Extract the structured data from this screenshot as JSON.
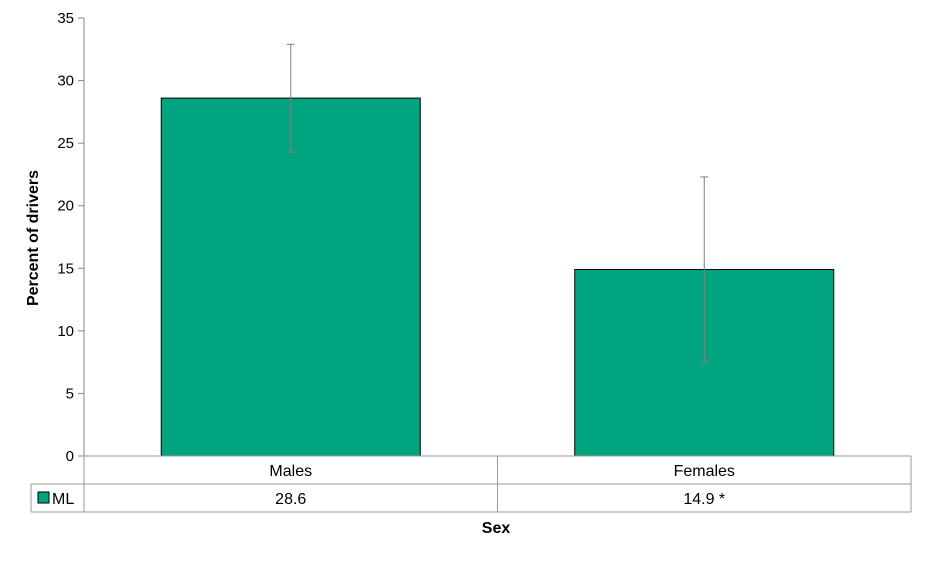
{
  "chart_data": {
    "type": "bar",
    "categories": [
      "Males",
      "Females"
    ],
    "series": [
      {
        "name": "ML",
        "values": [
          28.6,
          14.9
        ],
        "value_labels": [
          "28.6",
          "14.9 *"
        ],
        "error_low": [
          24.3,
          7.5
        ],
        "error_high": [
          32.9,
          22.3
        ],
        "color": "#00a57f"
      }
    ],
    "xlabel": "Sex",
    "ylabel": "Percent of drivers",
    "ylim": [
      0,
      35
    ],
    "yticks": [
      0,
      5,
      10,
      15,
      20,
      25,
      30,
      35
    ],
    "data_table": true,
    "grid": false
  }
}
